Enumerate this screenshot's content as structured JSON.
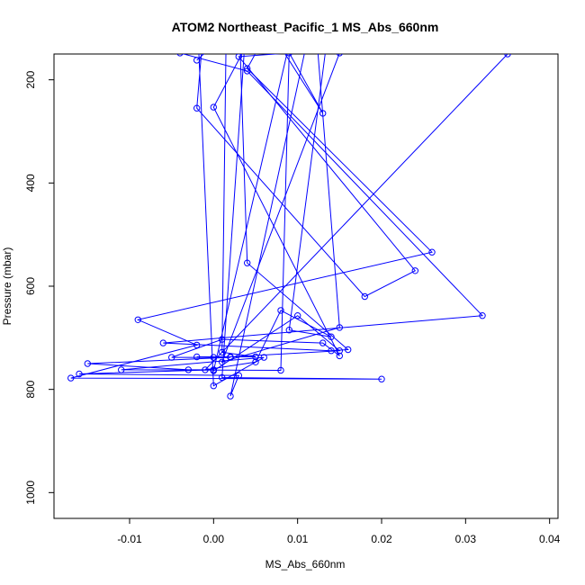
{
  "chart_data": {
    "type": "line",
    "title": "ATOM2 Northeast_Pacific_1 MS_Abs_660nm",
    "xlabel": "MS_Abs_660nm",
    "ylabel": "Pressure (mbar)",
    "xlim": [
      -0.019,
      0.041
    ],
    "ylim": [
      1050,
      150
    ],
    "y_inverted": true,
    "x_ticks": [
      -0.01,
      0.0,
      0.01,
      0.02,
      0.03,
      0.04
    ],
    "x_tick_labels": [
      "-0.01",
      "0.00",
      "0.01",
      "0.02",
      "0.03",
      "0.04"
    ],
    "y_ticks": [
      200,
      400,
      600,
      800,
      1000
    ],
    "y_tick_labels": [
      "200",
      "400",
      "600",
      "800",
      "1000"
    ],
    "grid": false,
    "legend": "none",
    "series_color": "#0000ff",
    "marker": "open-circle",
    "series": [
      {
        "values": [
          {
            "x": 0.0015,
            "y": 110
          },
          {
            "x": 0.001,
            "y": 728
          },
          {
            "x": 0.005,
            "y": 737
          },
          {
            "x": -0.002,
            "y": 737
          },
          {
            "x": 0.002,
            "y": 738
          },
          {
            "x": -0.015,
            "y": 750
          },
          {
            "x": -0.003,
            "y": 762
          },
          {
            "x": 0.0,
            "y": 762
          },
          {
            "x": -0.016,
            "y": 770
          },
          {
            "x": 0.003,
            "y": 773
          },
          {
            "x": 0.002,
            "y": 813
          },
          {
            "x": 0.012,
            "y": 60
          }
        ]
      },
      {
        "values": [
          {
            "x": 0.005,
            "y": 100
          },
          {
            "x": 0.0,
            "y": 253
          },
          {
            "x": 0.015,
            "y": 735
          },
          {
            "x": 0.013,
            "y": 710
          },
          {
            "x": 0.001,
            "y": 703
          },
          {
            "x": -0.005,
            "y": 738
          },
          {
            "x": 0.0,
            "y": 738
          },
          {
            "x": 0.002,
            "y": 737
          },
          {
            "x": 0.015,
            "y": 725
          },
          {
            "x": 0.01,
            "y": 657
          },
          {
            "x": 0.0,
            "y": 764
          },
          {
            "x": 0.01,
            "y": 60
          }
        ]
      },
      {
        "values": [
          {
            "x": 0.008,
            "y": 60
          },
          {
            "x": 0.004,
            "y": 178
          },
          {
            "x": 0.026,
            "y": 534
          },
          {
            "x": -0.009,
            "y": 665
          },
          {
            "x": -0.002,
            "y": 714
          },
          {
            "x": -0.017,
            "y": 778
          },
          {
            "x": 0.02,
            "y": 780
          },
          {
            "x": 0.001,
            "y": 777
          },
          {
            "x": 0.004,
            "y": 60
          }
        ]
      },
      {
        "values": [
          {
            "x": -0.001,
            "y": 60
          },
          {
            "x": -0.002,
            "y": 255
          },
          {
            "x": 0.018,
            "y": 620
          },
          {
            "x": 0.024,
            "y": 570
          },
          {
            "x": 0.003,
            "y": 155
          },
          {
            "x": 0.009,
            "y": 148
          },
          {
            "x": 0.008,
            "y": 763
          },
          {
            "x": -0.011,
            "y": 762
          },
          {
            "x": 0.006,
            "y": 738
          },
          {
            "x": 0.0,
            "y": 793
          },
          {
            "x": -0.002,
            "y": 60
          }
        ]
      },
      {
        "values": [
          {
            "x": -0.004,
            "y": 148
          },
          {
            "x": 0.004,
            "y": 183
          },
          {
            "x": 0.032,
            "y": 657
          },
          {
            "x": -0.006,
            "y": 710
          },
          {
            "x": 0.014,
            "y": 725
          },
          {
            "x": 0.016,
            "y": 723
          },
          {
            "x": 0.004,
            "y": 555
          },
          {
            "x": 0.003,
            "y": 60
          }
        ]
      },
      {
        "values": [
          {
            "x": 0.035,
            "y": 150
          },
          {
            "x": -0.001,
            "y": 762
          },
          {
            "x": 0.005,
            "y": 747
          },
          {
            "x": 0.008,
            "y": 647
          },
          {
            "x": 0.014,
            "y": 698
          },
          {
            "x": 0.009,
            "y": 685
          },
          {
            "x": 0.014,
            "y": 60
          }
        ]
      },
      {
        "values": [
          {
            "x": -0.002,
            "y": 162
          },
          {
            "x": 0.005,
            "y": 60
          },
          {
            "x": 0.013,
            "y": 265
          },
          {
            "x": 0.006,
            "y": 60
          },
          {
            "x": 0.015,
            "y": 148
          },
          {
            "x": 0.001,
            "y": 747
          },
          {
            "x": 0.015,
            "y": 680
          },
          {
            "x": 0.012,
            "y": 60
          }
        ]
      }
    ]
  }
}
